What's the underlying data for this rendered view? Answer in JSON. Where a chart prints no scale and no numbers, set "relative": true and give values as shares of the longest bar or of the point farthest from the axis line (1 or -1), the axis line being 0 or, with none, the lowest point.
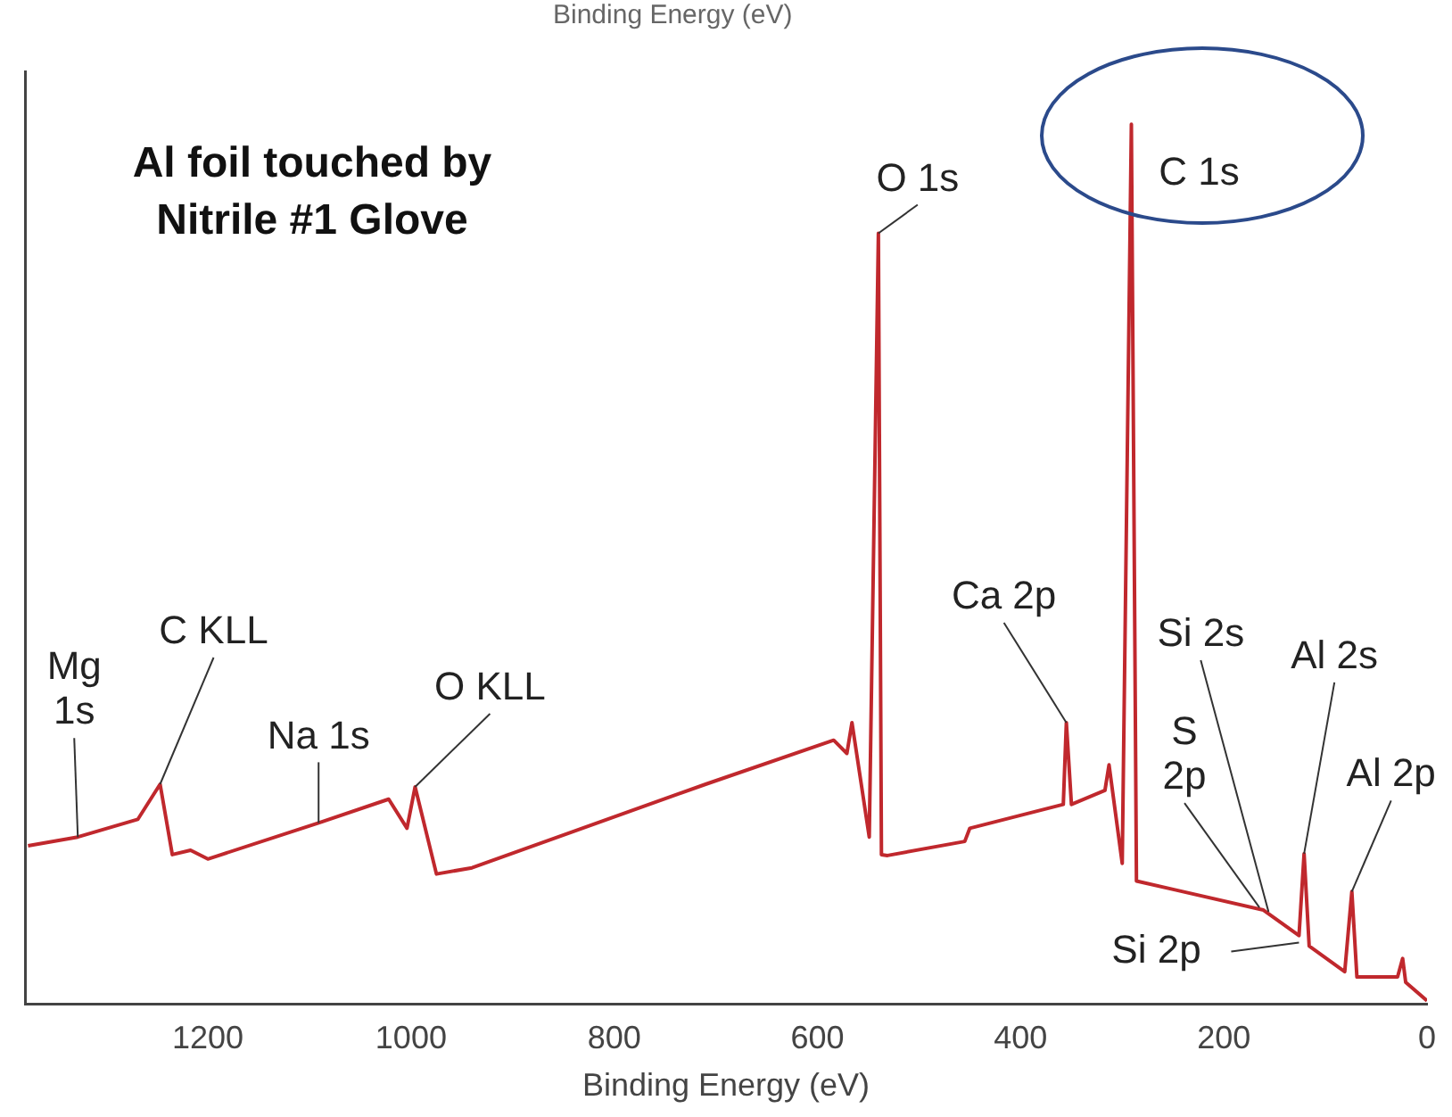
{
  "chart_data": {
    "type": "line",
    "title": "Al foil touched by Nitrile #1 Glove",
    "xlabel": "Binding Energy (eV)",
    "relative": true,
    "xlim": [
      1380,
      0
    ],
    "xticks": [
      1200,
      1000,
      800,
      600,
      400,
      200,
      0
    ],
    "grid": false,
    "legend": false,
    "marker": "none",
    "line_style": "solid",
    "x": [
      1377,
      1328,
      1269,
      1247,
      1235,
      1217,
      1200,
      1091,
      1022,
      1004,
      996,
      975,
      940,
      710,
      584,
      571,
      566,
      549,
      540,
      537,
      531,
      455,
      450,
      358,
      355,
      350,
      317,
      313,
      300,
      291,
      286,
      248,
      161,
      126,
      121,
      116,
      81,
      74,
      69,
      29,
      24,
      21,
      0
    ],
    "series": [
      {
        "color": "#c0282d",
        "values": [
          0.18,
          0.19,
          0.21,
          0.25,
          0.17,
          0.175,
          0.165,
          0.206,
          0.233,
          0.2,
          0.247,
          0.148,
          0.155,
          0.25,
          0.3,
          0.285,
          0.32,
          0.19,
          0.876,
          0.17,
          0.169,
          0.185,
          0.2,
          0.227,
          0.32,
          0.227,
          0.243,
          0.272,
          0.16,
          1,
          0.14,
          0.13,
          0.107,
          0.078,
          0.171,
          0.066,
          0.037,
          0.128,
          0.031,
          0.031,
          0.052,
          0.025,
          0.004
        ]
      }
    ],
    "annotations": [
      "Binding Energy (eV)",
      {
        "text": "Mg 1s",
        "x": 1328,
        "y": 0.19
      },
      {
        "text": "C KLL",
        "x": 1247,
        "y": 0.25
      },
      {
        "text": "Na 1s",
        "x": 1091,
        "y": 0.206
      },
      {
        "text": "O KLL",
        "x": 996,
        "y": 0.247
      },
      {
        "text": "O 1s",
        "x": 540,
        "y": 0.876
      },
      {
        "text": "C 1s",
        "x": 291,
        "y": 1
      },
      {
        "text": "Ca 2p",
        "x": 355,
        "y": 0.32
      },
      {
        "text": "S 2p",
        "x": 165,
        "y": 0.11
      },
      {
        "text": "Si 2s",
        "x": 156,
        "y": 0.105
      },
      {
        "text": "Al 2s",
        "x": 121,
        "y": 0.171
      },
      {
        "text": "Al 2p",
        "x": 74,
        "y": 0.128
      },
      {
        "text": "Si 2p",
        "x": 126,
        "y": 0.07
      }
    ]
  }
}
